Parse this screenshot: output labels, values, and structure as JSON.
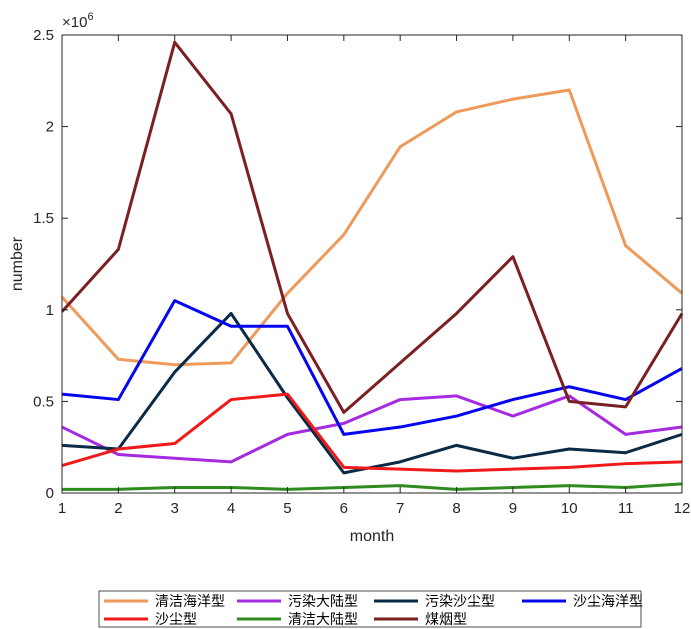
{
  "chart_data": {
    "type": "line",
    "xlabel": "month",
    "ylabel": "number",
    "y_exponent_label": "×10",
    "y_exponent_power": "6",
    "xlim": [
      1,
      12
    ],
    "ylim": [
      0,
      2.5
    ],
    "x_ticks": [
      "1",
      "2",
      "3",
      "4",
      "5",
      "6",
      "7",
      "8",
      "9",
      "10",
      "11",
      "12"
    ],
    "y_ticks": [
      "0",
      "0.5",
      "1",
      "1.5",
      "2",
      "2.5"
    ],
    "grid": false,
    "legend_position": "bottom",
    "x": [
      1,
      2,
      3,
      4,
      5,
      6,
      7,
      8,
      9,
      10,
      11,
      12
    ],
    "series": [
      {
        "name": "清洁海洋型",
        "color": "#EE9A5A",
        "values": [
          1.07,
          0.73,
          0.7,
          0.71,
          1.09,
          1.41,
          1.89,
          2.08,
          2.15,
          2.2,
          1.35,
          1.09
        ]
      },
      {
        "name": "污染大陆型",
        "color": "#A52BE0",
        "values": [
          0.36,
          0.21,
          0.19,
          0.17,
          0.32,
          0.38,
          0.51,
          0.53,
          0.42,
          0.53,
          0.32,
          0.36
        ]
      },
      {
        "name": "污染沙尘型",
        "color": "#0A2A45",
        "values": [
          0.26,
          0.24,
          0.66,
          0.98,
          0.52,
          0.11,
          0.17,
          0.26,
          0.19,
          0.24,
          0.22,
          0.32
        ]
      },
      {
        "name": "沙尘海洋型",
        "color": "#0505F0",
        "values": [
          0.54,
          0.51,
          1.05,
          0.91,
          0.91,
          0.32,
          0.36,
          0.42,
          0.51,
          0.58,
          0.51,
          0.68
        ]
      },
      {
        "name": "沙尘型",
        "color": "#F01A1A",
        "values": [
          0.15,
          0.24,
          0.27,
          0.51,
          0.54,
          0.14,
          0.13,
          0.12,
          0.13,
          0.14,
          0.16,
          0.17
        ]
      },
      {
        "name": "清洁大陆型",
        "color": "#2E8B1E",
        "values": [
          0.02,
          0.02,
          0.03,
          0.03,
          0.02,
          0.03,
          0.04,
          0.02,
          0.03,
          0.04,
          0.03,
          0.05
        ]
      },
      {
        "name": "煤烟型",
        "color": "#7B2022",
        "values": [
          0.99,
          1.33,
          2.46,
          2.07,
          0.98,
          0.44,
          0.71,
          0.98,
          1.29,
          0.5,
          0.47,
          0.98
        ]
      }
    ]
  }
}
